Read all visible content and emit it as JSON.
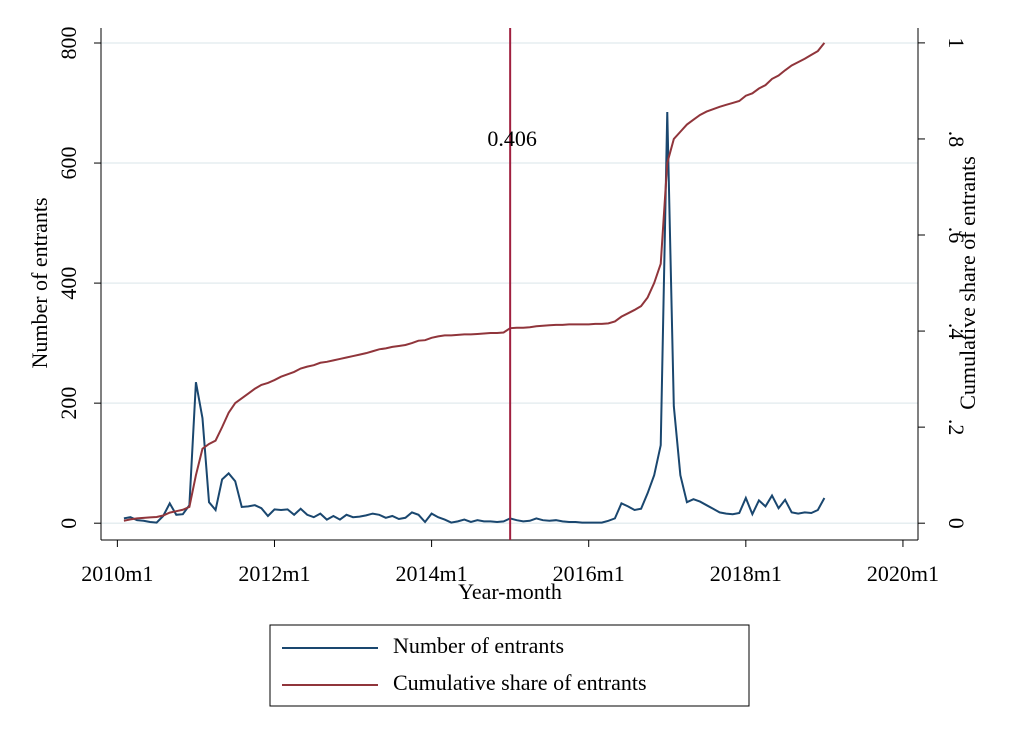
{
  "chart_data": {
    "type": "line",
    "xlabel": "Year-month",
    "ylabel": "Number of entrants",
    "y2label": "Cumulative share of entrants",
    "x": [
      601,
      602,
      603,
      604,
      605,
      606,
      607,
      608,
      609,
      610,
      611,
      612,
      613,
      614,
      615,
      616,
      617,
      618,
      619,
      620,
      621,
      622,
      623,
      624,
      625,
      626,
      627,
      628,
      629,
      630,
      631,
      632,
      633,
      634,
      635,
      636,
      637,
      638,
      639,
      640,
      641,
      642,
      643,
      644,
      645,
      646,
      647,
      648,
      649,
      650,
      651,
      652,
      653,
      654,
      655,
      656,
      657,
      658,
      659,
      660,
      661,
      662,
      663,
      664,
      665,
      666,
      667,
      668,
      669,
      670,
      671,
      672,
      673,
      674,
      675,
      676,
      677,
      678,
      679,
      680,
      681,
      682,
      683,
      684,
      685,
      686,
      687,
      688,
      689,
      690,
      691,
      692,
      693,
      694,
      695,
      696,
      697,
      698,
      699,
      700,
      701,
      702,
      703,
      704,
      705,
      706,
      707,
      708
    ],
    "series": [
      {
        "name": "Number of entrants",
        "color": "#1a476f",
        "values": [
          8,
          10,
          5,
          4,
          2,
          1,
          12,
          33,
          14,
          15,
          30,
          235,
          175,
          35,
          22,
          73,
          83,
          70,
          27,
          28,
          30,
          25,
          12,
          23,
          22,
          23,
          14,
          24,
          14,
          10,
          16,
          6,
          12,
          6,
          14,
          10,
          11,
          13,
          16,
          14,
          9,
          12,
          7,
          9,
          18,
          14,
          2,
          16,
          10,
          6,
          1,
          3,
          6,
          2,
          5,
          3,
          3,
          2,
          3,
          8,
          5,
          3,
          4,
          8,
          5,
          4,
          5,
          3,
          2,
          2,
          1,
          1,
          1,
          1,
          4,
          8,
          33,
          28,
          22,
          24,
          50,
          80,
          130,
          685,
          195,
          80,
          35,
          40,
          36,
          30,
          24,
          18,
          16,
          15,
          17,
          42,
          15,
          38,
          28,
          46,
          25,
          39,
          18,
          16,
          18,
          17,
          22,
          42
        ]
      },
      {
        "name": "Cumulative share of entrants",
        "color": "#90353b",
        "axis": "y2",
        "values": [
          0.005,
          0.008,
          0.01,
          0.011,
          0.012,
          0.013,
          0.016,
          0.022,
          0.025,
          0.028,
          0.034,
          0.1,
          0.155,
          0.165,
          0.172,
          0.2,
          0.23,
          0.25,
          0.26,
          0.27,
          0.28,
          0.288,
          0.292,
          0.298,
          0.305,
          0.31,
          0.315,
          0.322,
          0.326,
          0.329,
          0.334,
          0.336,
          0.339,
          0.342,
          0.345,
          0.348,
          0.351,
          0.354,
          0.358,
          0.362,
          0.364,
          0.367,
          0.369,
          0.371,
          0.375,
          0.38,
          0.381,
          0.386,
          0.389,
          0.391,
          0.391,
          0.392,
          0.393,
          0.393,
          0.394,
          0.395,
          0.396,
          0.396,
          0.397,
          0.406,
          0.407,
          0.407,
          0.408,
          0.41,
          0.411,
          0.412,
          0.413,
          0.413,
          0.414,
          0.414,
          0.414,
          0.414,
          0.415,
          0.415,
          0.416,
          0.42,
          0.43,
          0.437,
          0.444,
          0.452,
          0.47,
          0.5,
          0.54,
          0.75,
          0.8,
          0.815,
          0.83,
          0.84,
          0.85,
          0.857,
          0.862,
          0.867,
          0.871,
          0.875,
          0.879,
          0.89,
          0.895,
          0.905,
          0.912,
          0.925,
          0.932,
          0.943,
          0.953,
          0.96,
          0.967,
          0.975,
          0.983,
          1.0
        ]
      }
    ],
    "vline": {
      "x": 660,
      "color": "#a0203f",
      "label": "0.406",
      "label_y": 637
    },
    "xlim": [
      597.5,
      722.3
    ],
    "xticks": [
      {
        "value": 600,
        "label": "2010m1"
      },
      {
        "value": 624,
        "label": "2012m1"
      },
      {
        "value": 648,
        "label": "2014m1"
      },
      {
        "value": 672,
        "label": "2016m1"
      },
      {
        "value": 696,
        "label": "2018m1"
      },
      {
        "value": 720,
        "label": "2020m1"
      }
    ],
    "ylim": [
      -28,
      825
    ],
    "yticks": [
      0,
      200,
      400,
      600,
      800
    ],
    "y2lim": [
      -0.035,
      1.031
    ],
    "y2ticks": [
      0,
      {
        "value": 0.2,
        "label": ".2"
      },
      {
        "value": 0.4,
        "label": ".4"
      },
      {
        "value": 0.6,
        "label": ".6"
      },
      {
        "value": 0.8,
        "label": ".8"
      },
      1
    ],
    "grid": true,
    "legend": "bottom"
  }
}
